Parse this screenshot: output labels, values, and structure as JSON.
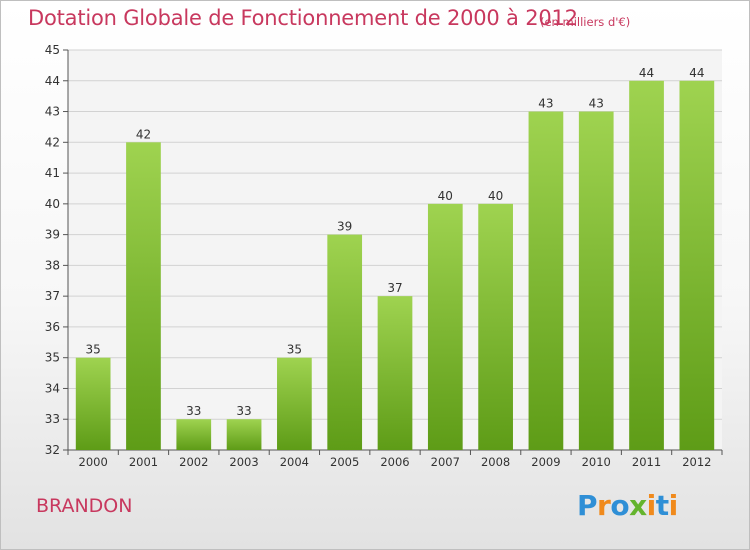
{
  "header": {
    "title": "Dotation Globale de Fonctionnement de 2000 à 2012",
    "subtitle": "(en milliers d'€)"
  },
  "footer": {
    "commune": "BRANDON",
    "logo_text": "Proxiti"
  },
  "colors": {
    "title": "#c8385e",
    "bar_light": "#9fd350",
    "bar_dark": "#5e9c17",
    "logo_blue": "#2f8fd6",
    "logo_orange": "#f08a1c",
    "logo_green": "#64b42d"
  },
  "chart_data": {
    "type": "bar",
    "categories": [
      "2000",
      "2001",
      "2002",
      "2003",
      "2004",
      "2005",
      "2006",
      "2007",
      "2008",
      "2009",
      "2010",
      "2011",
      "2012"
    ],
    "values": [
      35,
      42,
      33,
      33,
      35,
      39,
      37,
      40,
      40,
      43,
      43,
      44,
      44
    ],
    "ylim": [
      32,
      45
    ],
    "yticks": [
      32,
      33,
      34,
      35,
      36,
      37,
      38,
      39,
      40,
      41,
      42,
      43,
      44,
      45
    ],
    "grid": true,
    "data_labels": true
  }
}
